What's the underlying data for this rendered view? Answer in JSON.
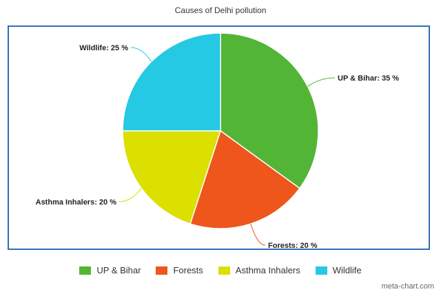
{
  "chart_data": {
    "type": "pie",
    "title": "Causes of Delhi pollution",
    "categories": [
      "UP & Bihar",
      "Forests",
      "Asthma Inhalers",
      "Wildlife"
    ],
    "values": [
      35,
      20,
      20,
      25
    ],
    "labels": [
      "UP & Bihar: 35 %",
      "Forests: 20 %",
      "Asthma Inhalers: 20 %",
      "Wildlife: 25 %"
    ],
    "colors": [
      "#53b535",
      "#ef561c",
      "#dbe000",
      "#25c9e3"
    ],
    "legend_position": "bottom"
  },
  "watermark": "meta-chart.com"
}
